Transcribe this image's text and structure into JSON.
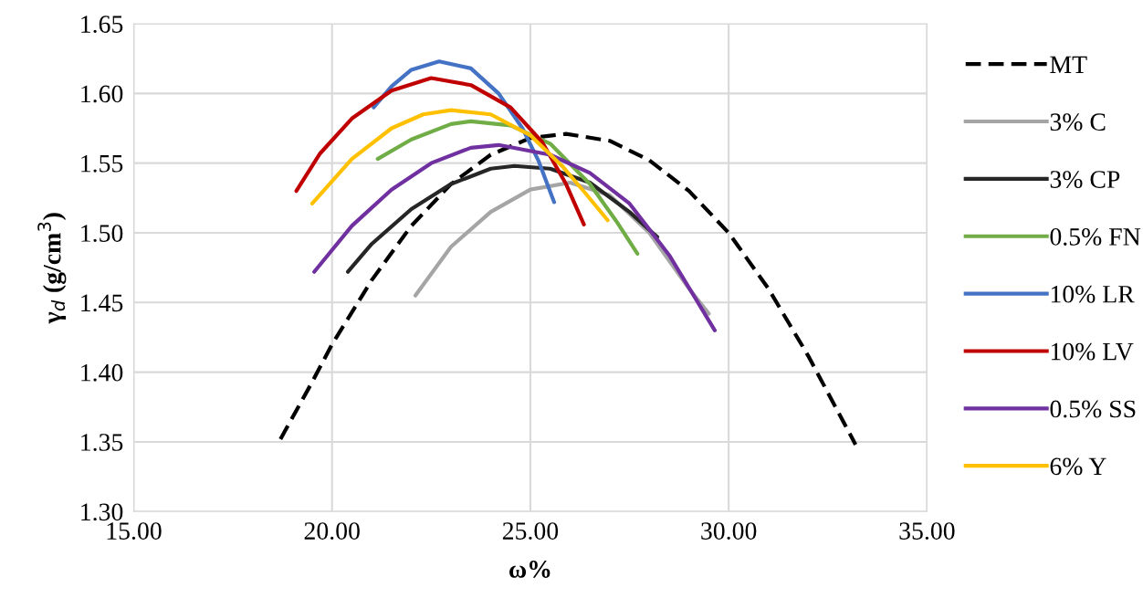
{
  "chart_data": {
    "type": "line",
    "xlabel": "ω%",
    "ylabel": "γ$_{d}$ (g/cm$^{3}$)",
    "xlim": [
      15,
      35
    ],
    "xticks": [
      {
        "value": 15,
        "label": "15.00"
      },
      {
        "value": 20,
        "label": "20.00"
      },
      {
        "value": 25,
        "label": "25.00"
      },
      {
        "value": 30,
        "label": "30.00"
      },
      {
        "value": 35,
        "label": "35.00"
      }
    ],
    "ylim": [
      1.3,
      1.65
    ],
    "yticks": [
      {
        "value": 1.3,
        "label": "1.30"
      },
      {
        "value": 1.35,
        "label": "1.35"
      },
      {
        "value": 1.4,
        "label": "1.40"
      },
      {
        "value": 1.45,
        "label": "1.45"
      },
      {
        "value": 1.5,
        "label": "1.50"
      },
      {
        "value": 1.55,
        "label": "1.55"
      },
      {
        "value": 1.6,
        "label": "1.60"
      },
      {
        "value": 1.65,
        "label": "1.65"
      }
    ],
    "grid": true,
    "legend": "right",
    "marker": "none",
    "series": [
      {
        "name": "MT",
        "color": "#000000",
        "line_style": "dashed",
        "x": [
          18.7,
          19.5,
          20,
          21,
          22,
          23,
          24,
          25,
          25.9,
          27,
          28,
          29,
          30,
          31,
          32,
          33.2
        ],
        "values": [
          1.352,
          1.393,
          1.42,
          1.466,
          1.505,
          1.535,
          1.556,
          1.568,
          1.571,
          1.566,
          1.552,
          1.53,
          1.5,
          1.46,
          1.412,
          1.348
        ]
      },
      {
        "name": "3% C",
        "color": "#a5a5a5",
        "line_style": "solid",
        "x": [
          22.1,
          23,
          24,
          25,
          26,
          27,
          28,
          29,
          29.5
        ],
        "values": [
          1.455,
          1.49,
          1.515,
          1.531,
          1.536,
          1.527,
          1.5,
          1.46,
          1.442
        ]
      },
      {
        "name": "3% CP",
        "color": "#262626",
        "line_style": "solid",
        "x": [
          20.4,
          21,
          22,
          23,
          24,
          24.6,
          25.5,
          26.5,
          27.5,
          28.2
        ],
        "values": [
          1.472,
          1.492,
          1.517,
          1.535,
          1.546,
          1.548,
          1.546,
          1.536,
          1.515,
          1.497
        ]
      },
      {
        "name": "0.5% FN",
        "color": "#70ad47",
        "line_style": "solid",
        "x": [
          21.15,
          22,
          23,
          23.5,
          24.5,
          25.5,
          26.5,
          27.2,
          27.7
        ],
        "values": [
          1.553,
          1.567,
          1.578,
          1.58,
          1.577,
          1.564,
          1.535,
          1.507,
          1.485
        ]
      },
      {
        "name": "10% LR",
        "color": "#4472c4",
        "line_style": "solid",
        "x": [
          21.05,
          21.5,
          22,
          22.7,
          23.5,
          24.2,
          24.8,
          25.2,
          25.6
        ],
        "values": [
          1.59,
          1.605,
          1.617,
          1.623,
          1.618,
          1.6,
          1.575,
          1.552,
          1.522
        ]
      },
      {
        "name": "10% LV",
        "color": "#c00000",
        "line_style": "solid",
        "x": [
          19.1,
          19.7,
          20.5,
          21.5,
          22.5,
          23.5,
          24.5,
          25.3,
          25.9,
          26.35
        ],
        "values": [
          1.53,
          1.557,
          1.582,
          1.602,
          1.611,
          1.606,
          1.59,
          1.565,
          1.535,
          1.506
        ]
      },
      {
        "name": "0.5% SS",
        "color": "#7030a0",
        "line_style": "solid",
        "x": [
          19.55,
          20.5,
          21.5,
          22.5,
          23.5,
          24.2,
          25.5,
          26.5,
          27.5,
          28.5,
          29.65
        ],
        "values": [
          1.472,
          1.505,
          1.531,
          1.55,
          1.561,
          1.563,
          1.556,
          1.543,
          1.521,
          1.484,
          1.43
        ]
      },
      {
        "name": "6% Y",
        "color": "#ffc000",
        "line_style": "solid",
        "x": [
          19.5,
          20.5,
          21.5,
          22.3,
          23,
          24,
          25,
          25.8,
          26.4,
          26.95
        ],
        "values": [
          1.521,
          1.553,
          1.575,
          1.585,
          1.588,
          1.585,
          1.57,
          1.548,
          1.528,
          1.509
        ]
      }
    ]
  }
}
